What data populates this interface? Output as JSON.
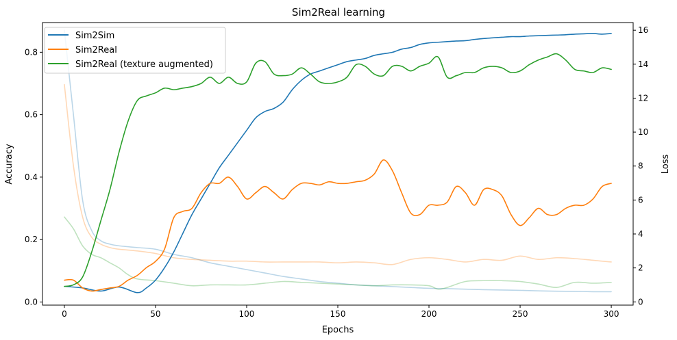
{
  "chart_data": {
    "type": "line",
    "title": "Sim2Real learning",
    "xlabel": "Epochs",
    "ylabel": "Accuracy",
    "y2label": "Loss",
    "xlim": [
      -12,
      312
    ],
    "ylim": [
      -0.01,
      0.895
    ],
    "y2lim": [
      -0.19,
      16.45
    ],
    "xticks": [
      0,
      50,
      100,
      150,
      200,
      250,
      300
    ],
    "yticks": [
      0.0,
      0.2,
      0.4,
      0.6,
      0.8
    ],
    "y2ticks": [
      0,
      2,
      4,
      6,
      8,
      10,
      12,
      14,
      16
    ],
    "grid": false,
    "legend_position": "top-left",
    "series": [
      {
        "name": "Sim2Sim",
        "axis": "left",
        "role": "accuracy",
        "color": "#1f77b4",
        "x": [
          0,
          10,
          20,
          30,
          40,
          45,
          50,
          55,
          60,
          65,
          70,
          75,
          80,
          85,
          90,
          95,
          100,
          105,
          110,
          115,
          120,
          125,
          130,
          135,
          140,
          145,
          150,
          155,
          160,
          165,
          170,
          175,
          180,
          185,
          190,
          195,
          200,
          205,
          210,
          215,
          220,
          225,
          230,
          235,
          240,
          245,
          250,
          255,
          260,
          265,
          270,
          275,
          280,
          285,
          290,
          295,
          300
        ],
        "y": [
          0.05,
          0.045,
          0.035,
          0.048,
          0.03,
          0.045,
          0.07,
          0.11,
          0.16,
          0.22,
          0.28,
          0.33,
          0.38,
          0.43,
          0.47,
          0.51,
          0.55,
          0.59,
          0.61,
          0.62,
          0.64,
          0.68,
          0.71,
          0.73,
          0.74,
          0.75,
          0.76,
          0.77,
          0.775,
          0.78,
          0.79,
          0.795,
          0.8,
          0.81,
          0.815,
          0.825,
          0.83,
          0.832,
          0.834,
          0.836,
          0.837,
          0.841,
          0.844,
          0.846,
          0.848,
          0.85,
          0.85,
          0.852,
          0.853,
          0.854,
          0.855,
          0.856,
          0.858,
          0.859,
          0.86,
          0.858,
          0.86
        ]
      },
      {
        "name": "Sim2Real",
        "axis": "left",
        "role": "accuracy",
        "color": "#ff7f0e",
        "x": [
          0,
          5,
          10,
          15,
          20,
          25,
          30,
          35,
          40,
          45,
          50,
          55,
          60,
          65,
          70,
          75,
          80,
          85,
          90,
          95,
          100,
          105,
          110,
          115,
          120,
          125,
          130,
          135,
          140,
          145,
          150,
          155,
          160,
          165,
          170,
          175,
          180,
          185,
          190,
          195,
          200,
          205,
          210,
          215,
          220,
          225,
          230,
          235,
          240,
          245,
          250,
          255,
          260,
          265,
          270,
          275,
          280,
          285,
          290,
          295,
          300
        ],
        "y": [
          0.07,
          0.07,
          0.045,
          0.035,
          0.04,
          0.045,
          0.05,
          0.07,
          0.085,
          0.11,
          0.13,
          0.17,
          0.27,
          0.29,
          0.3,
          0.35,
          0.38,
          0.38,
          0.4,
          0.37,
          0.33,
          0.35,
          0.37,
          0.35,
          0.33,
          0.36,
          0.38,
          0.38,
          0.375,
          0.385,
          0.38,
          0.38,
          0.385,
          0.39,
          0.41,
          0.455,
          0.42,
          0.35,
          0.285,
          0.28,
          0.31,
          0.31,
          0.32,
          0.37,
          0.35,
          0.31,
          0.36,
          0.36,
          0.34,
          0.28,
          0.245,
          0.27,
          0.3,
          0.28,
          0.28,
          0.3,
          0.31,
          0.31,
          0.33,
          0.37,
          0.38
        ]
      },
      {
        "name": "Sim2Real (texture augmented)",
        "axis": "left",
        "role": "accuracy",
        "color": "#2ca02c",
        "x": [
          0,
          5,
          10,
          15,
          20,
          25,
          30,
          35,
          40,
          45,
          50,
          55,
          60,
          65,
          70,
          75,
          80,
          85,
          90,
          95,
          100,
          105,
          110,
          115,
          120,
          125,
          130,
          135,
          140,
          145,
          150,
          155,
          160,
          165,
          170,
          175,
          180,
          185,
          190,
          195,
          200,
          205,
          210,
          215,
          220,
          225,
          230,
          235,
          240,
          245,
          250,
          255,
          260,
          265,
          270,
          275,
          280,
          285,
          290,
          295,
          300
        ],
        "y": [
          0.05,
          0.055,
          0.08,
          0.16,
          0.26,
          0.36,
          0.48,
          0.58,
          0.645,
          0.66,
          0.67,
          0.685,
          0.68,
          0.685,
          0.69,
          0.7,
          0.72,
          0.7,
          0.72,
          0.7,
          0.705,
          0.765,
          0.77,
          0.73,
          0.725,
          0.73,
          0.75,
          0.73,
          0.705,
          0.7,
          0.705,
          0.72,
          0.76,
          0.755,
          0.73,
          0.725,
          0.755,
          0.755,
          0.74,
          0.755,
          0.765,
          0.785,
          0.72,
          0.725,
          0.735,
          0.735,
          0.75,
          0.755,
          0.75,
          0.735,
          0.74,
          0.76,
          0.775,
          0.785,
          0.795,
          0.775,
          0.745,
          0.74,
          0.735,
          0.75,
          0.745
        ]
      },
      {
        "name": "",
        "axis": "right",
        "role": "loss",
        "color": "#1f77b4",
        "opacity": 0.3,
        "x": [
          0,
          5,
          10,
          15,
          20,
          25,
          30,
          40,
          50,
          60,
          70,
          80,
          90,
          100,
          110,
          120,
          130,
          140,
          150,
          160,
          170,
          180,
          190,
          200,
          210,
          220,
          230,
          240,
          250,
          260,
          270,
          280,
          290,
          300
        ],
        "y": [
          16.0,
          11.0,
          6.0,
          4.2,
          3.6,
          3.4,
          3.3,
          3.2,
          3.1,
          2.8,
          2.6,
          2.3,
          2.1,
          1.9,
          1.7,
          1.5,
          1.35,
          1.2,
          1.1,
          1.0,
          0.95,
          0.9,
          0.85,
          0.8,
          0.78,
          0.75,
          0.72,
          0.7,
          0.68,
          0.65,
          0.63,
          0.62,
          0.6,
          0.6
        ]
      },
      {
        "name": "",
        "axis": "right",
        "role": "loss",
        "color": "#ff7f0e",
        "opacity": 0.3,
        "x": [
          0,
          5,
          10,
          15,
          20,
          25,
          30,
          40,
          50,
          60,
          70,
          80,
          90,
          100,
          110,
          120,
          130,
          140,
          150,
          160,
          170,
          180,
          190,
          200,
          210,
          220,
          230,
          240,
          250,
          260,
          270,
          280,
          290,
          300
        ],
        "y": [
          12.8,
          8.0,
          5.0,
          3.8,
          3.4,
          3.2,
          3.1,
          3.0,
          2.85,
          2.6,
          2.5,
          2.45,
          2.4,
          2.4,
          2.35,
          2.35,
          2.35,
          2.35,
          2.3,
          2.35,
          2.3,
          2.2,
          2.5,
          2.6,
          2.5,
          2.35,
          2.5,
          2.45,
          2.7,
          2.5,
          2.6,
          2.55,
          2.45,
          2.35
        ]
      },
      {
        "name": "",
        "axis": "right",
        "role": "loss",
        "color": "#2ca02c",
        "opacity": 0.3,
        "x": [
          0,
          5,
          10,
          15,
          20,
          25,
          30,
          35,
          40,
          50,
          60,
          70,
          80,
          90,
          100,
          110,
          120,
          130,
          140,
          150,
          160,
          170,
          180,
          190,
          200,
          205,
          210,
          220,
          230,
          240,
          250,
          260,
          270,
          280,
          290,
          300
        ],
        "y": [
          5.0,
          4.3,
          3.3,
          2.8,
          2.6,
          2.3,
          2.0,
          1.6,
          1.35,
          1.25,
          1.1,
          0.95,
          1.0,
          1.0,
          1.0,
          1.1,
          1.2,
          1.15,
          1.1,
          1.05,
          1.0,
          0.95,
          1.0,
          1.0,
          0.95,
          0.75,
          0.85,
          1.2,
          1.25,
          1.25,
          1.2,
          1.05,
          0.85,
          1.15,
          1.1,
          1.15
        ]
      }
    ]
  }
}
